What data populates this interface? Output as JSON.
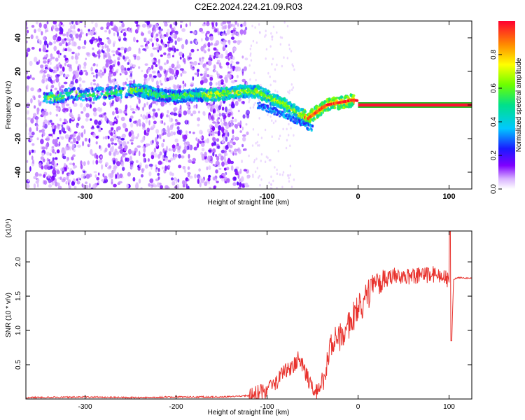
{
  "chart_data": [
    {
      "type": "heatmap",
      "title": "C2E2.2024.224.21.09.R03",
      "xlabel": "Height of straight line (km)",
      "ylabel": "Frequency (Hz)",
      "xlim": [
        -365,
        125
      ],
      "ylim": [
        -50,
        50
      ],
      "xticks": [
        -300,
        -200,
        -100,
        0,
        100
      ],
      "xtick_labels": [
        "-300",
        "-200",
        "-100",
        "0",
        "100"
      ],
      "yticks": [
        -40,
        -20,
        0,
        20,
        40
      ],
      "ytick_labels": [
        "-40",
        "-20",
        "0",
        "20",
        "40"
      ],
      "colorbar": {
        "label": "Normalized spectral amplitude",
        "range": [
          0,
          1
        ],
        "ticks": [
          0.0,
          0.2,
          0.4,
          0.6,
          0.8
        ],
        "tick_labels": [
          "0.0",
          "0.2",
          "0.4",
          "0.6",
          "0.8"
        ]
      },
      "ridge": {
        "x": [
          -345,
          -330,
          -315,
          -300,
          -280,
          -260,
          -240,
          -220,
          -200,
          -180,
          -160,
          -140,
          -125,
          -110,
          -95,
          -80,
          -65,
          -55,
          -45,
          -35,
          -25,
          -15,
          -5,
          5,
          20,
          40,
          60,
          80,
          100,
          125
        ],
        "y": [
          5,
          4,
          7,
          6,
          7,
          8,
          9,
          6,
          5,
          6,
          6,
          7,
          8,
          8,
          4,
          0,
          -5,
          -8,
          -4,
          0,
          1,
          2,
          3,
          2,
          0,
          0,
          0,
          0,
          0,
          0
        ]
      },
      "grid": false
    },
    {
      "type": "line",
      "title": "",
      "xlabel": "Height of straight line (km)",
      "ylabel": "SNR (10 * v/v)",
      "y_multiplier": "(x10⁴)",
      "xlim": [
        -365,
        125
      ],
      "ylim": [
        0,
        2.45
      ],
      "xticks": [
        -300,
        -200,
        -100,
        0,
        100
      ],
      "xtick_labels": [
        "-300",
        "-200",
        "-100",
        "0",
        "100"
      ],
      "yticks": [
        0.5,
        1.0,
        1.5,
        2.0
      ],
      "ytick_labels": [
        "0.5",
        "1.0",
        "1.5",
        "2.0"
      ],
      "series": [
        {
          "x": [
            -365,
            -300,
            -250,
            -200,
            -150,
            -120,
            -100,
            -90,
            -80,
            -70,
            -65,
            -60,
            -55,
            -50,
            -45,
            -40,
            -35,
            -30,
            -25,
            -20,
            -15,
            -10,
            -5,
            0,
            10,
            20,
            30,
            40,
            60,
            80,
            95,
            100,
            103,
            105,
            110,
            125
          ],
          "y": [
            0.02,
            0.03,
            0.02,
            0.03,
            0.03,
            0.05,
            0.12,
            0.25,
            0.4,
            0.5,
            0.6,
            0.45,
            0.3,
            0.15,
            0.1,
            0.25,
            0.5,
            0.75,
            0.85,
            0.9,
            1.0,
            1.1,
            1.2,
            1.3,
            1.5,
            1.65,
            1.72,
            1.8,
            1.78,
            1.82,
            1.8,
            1.7,
            0.9,
            1.75,
            1.77,
            1.76
          ],
          "color": "#e8332e"
        }
      ],
      "grid": false
    }
  ]
}
